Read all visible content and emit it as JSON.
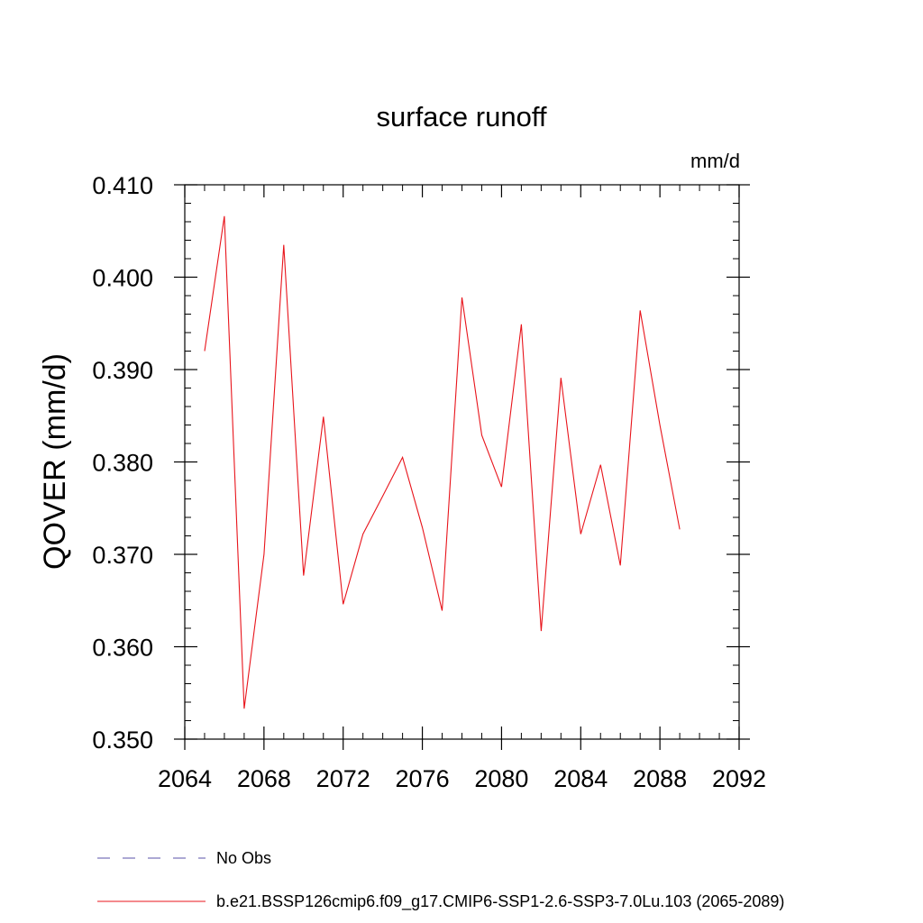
{
  "chart_data": {
    "type": "line",
    "title": "surface runoff",
    "units_label": "mm/d",
    "ylabel": "QOVER  (mm/d)",
    "xlabel": "",
    "xlim": [
      2064,
      2092
    ],
    "ylim": [
      0.35,
      0.41
    ],
    "xticks": [
      "2064",
      "2068",
      "2072",
      "2076",
      "2080",
      "2084",
      "2088",
      "2092"
    ],
    "yticks": [
      "0.350",
      "0.360",
      "0.370",
      "0.380",
      "0.390",
      "0.400",
      "0.410"
    ],
    "grid": false,
    "legend_position": "bottom",
    "legend": [
      {
        "label": "No Obs",
        "color": "#5a50a8",
        "style": "dashed"
      },
      {
        "label": "b.e21.BSSP126cmip6.f09_g17.CMIP6-SSP1-2.6-SSP3-7.0Lu.103 (2065-2089)",
        "color": "#e8141b",
        "style": "solid"
      }
    ],
    "series": [
      {
        "name": "b.e21.BSSP126cmip6.f09_g17.CMIP6-SSP1-2.6-SSP3-7.0Lu.103 (2065-2089)",
        "color": "#e8141b",
        "x": [
          2065,
          2066,
          2067,
          2068,
          2069,
          2070,
          2071,
          2072,
          2073,
          2074,
          2075,
          2076,
          2077,
          2078,
          2079,
          2080,
          2081,
          2082,
          2083,
          2084,
          2085,
          2086,
          2087,
          2088,
          2089
        ],
        "y": [
          0.392,
          0.4066,
          0.3533,
          0.37,
          0.4035,
          0.3677,
          0.3849,
          0.3646,
          0.3722,
          0.3763,
          0.3805,
          0.3729,
          0.3639,
          0.3978,
          0.3829,
          0.3773,
          0.3949,
          0.3617,
          0.3891,
          0.3722,
          0.3797,
          0.3688,
          0.3964,
          0.384,
          0.3727
        ]
      }
    ]
  }
}
